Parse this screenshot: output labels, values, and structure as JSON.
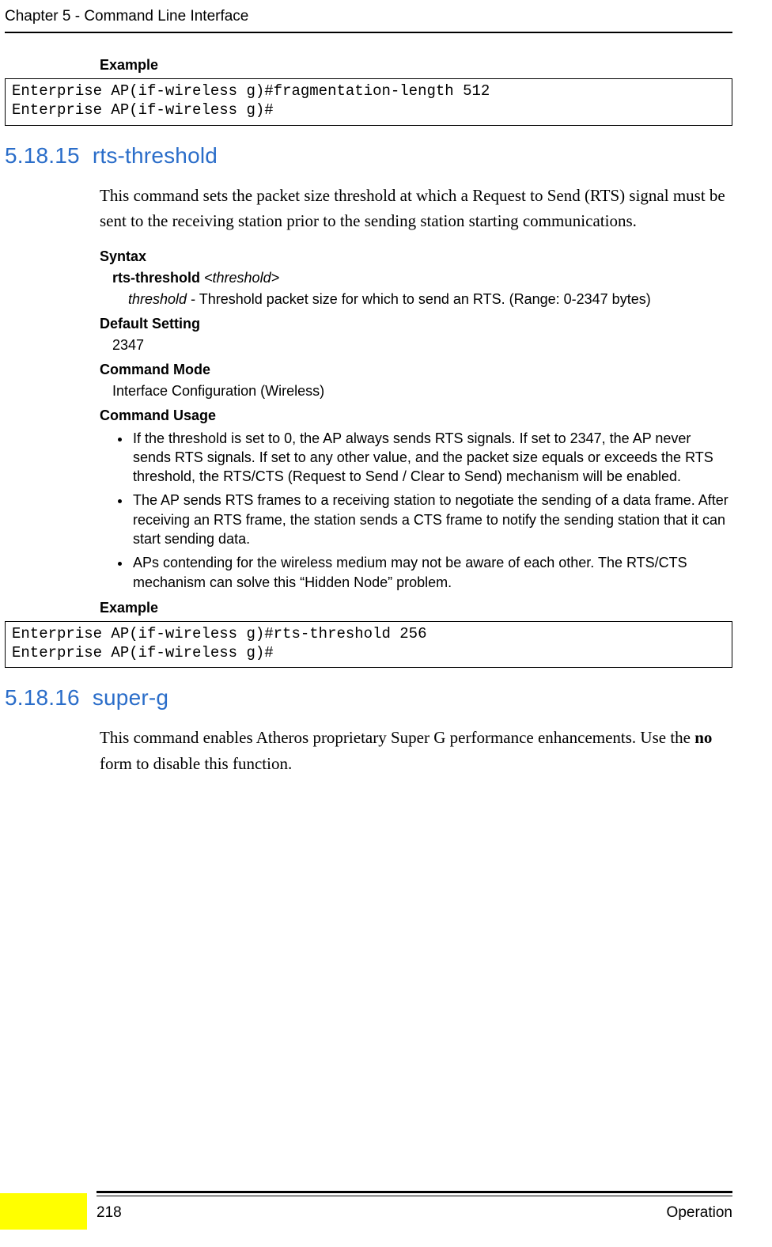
{
  "header": {
    "title": "Chapter 5 - Command Line Interface"
  },
  "example1": {
    "label": "Example",
    "code": "Enterprise AP(if-wireless g)#fragmentation-length 512\nEnterprise AP(if-wireless g)#"
  },
  "section_rts": {
    "number": "5.18.15",
    "title": "rts-threshold",
    "intro": "This command sets the packet size threshold at which a Request to Send (RTS) signal must be sent to the receiving station prior to the sending station starting communications.",
    "syntax_label": "Syntax",
    "syntax_cmd_bold": "rts-threshold",
    "syntax_cmd_ital": " <threshold>",
    "syntax_param_ital": "threshold",
    "syntax_param_rest": " - Threshold packet size for which to send an RTS. (Range: 0-2347 bytes)",
    "default_label": "Default Setting",
    "default_value": "2347",
    "mode_label": "Command Mode",
    "mode_value": "Interface Configuration (Wireless)",
    "usage_label": "Command Usage",
    "usage_items": [
      "If the threshold is set to 0, the AP always sends RTS signals. If set to 2347, the AP never sends RTS signals. If set to any other value, and the packet size equals or exceeds the RTS threshold, the RTS/CTS (Request to Send / Clear to Send) mechanism will be enabled.",
      "The AP sends RTS frames to a receiving station to negotiate the sending of a data frame. After receiving an RTS frame, the station sends a CTS frame to notify the sending station that it can start sending data.",
      "APs contending for the wireless medium may not be aware of each other. The RTS/CTS mechanism can solve this “Hidden Node” problem."
    ],
    "example_label": "Example",
    "example_code": "Enterprise AP(if-wireless g)#rts-threshold 256\nEnterprise AP(if-wireless g)#"
  },
  "section_superg": {
    "number": "5.18.16",
    "title": "super-g",
    "intro_pre": "This command enables Atheros proprietary Super G performance enhancements. Use the ",
    "intro_bold": "no",
    "intro_post": " form to disable this function."
  },
  "footer": {
    "page": "218",
    "right": "Operation"
  }
}
